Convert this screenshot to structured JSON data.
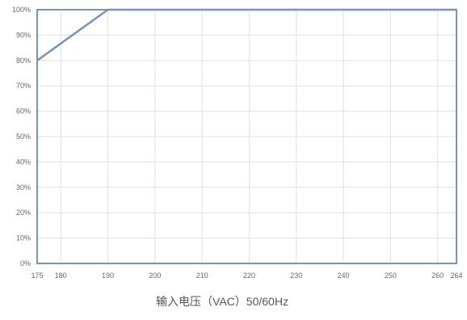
{
  "chart_data": {
    "type": "line",
    "title": "",
    "xlabel": "输入电压（VAC）50/60Hz",
    "ylabel": "",
    "x_ticks": [
      "175",
      "180",
      "190",
      "200",
      "210",
      "220",
      "230",
      "240",
      "250",
      "260",
      "264"
    ],
    "y_ticks": [
      "0%",
      "10%",
      "20%",
      "30%",
      "40%",
      "50%",
      "60%",
      "70%",
      "80%",
      "90%",
      "100%"
    ],
    "xlim": [
      175,
      264
    ],
    "ylim": [
      0,
      100
    ],
    "grid": true,
    "series": [
      {
        "x": [
          175,
          190,
          264
        ],
        "y": [
          80,
          100,
          100
        ],
        "color": "#7b93b5"
      }
    ],
    "reference_line": {
      "y": 100,
      "x_range": [
        175,
        190
      ],
      "style": "dotted",
      "color": "#888888"
    },
    "axis_color": "#7b93b5",
    "grid_color": "#e0e0e0"
  }
}
